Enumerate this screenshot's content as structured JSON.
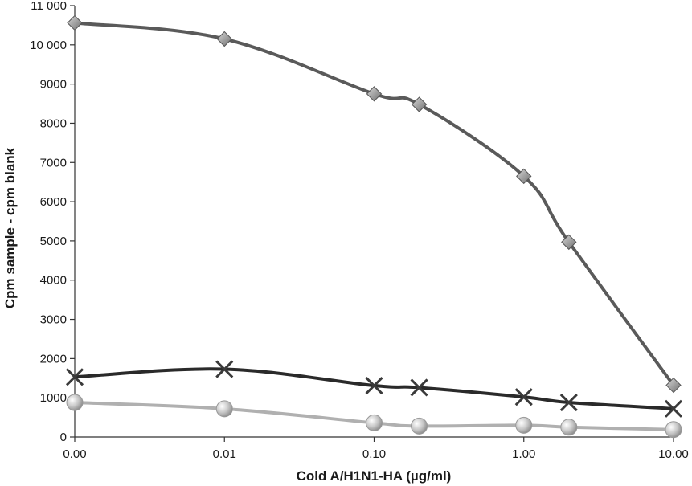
{
  "chart_data": {
    "type": "line",
    "title": "",
    "xlabel": "Cold A/H1N1-HA (µg/ml)",
    "ylabel": "Cpm sample - cpm blank",
    "x_scale": "log-like",
    "x_ticks": [
      {
        "value": 0.0,
        "label": "0.00"
      },
      {
        "value": 0.01,
        "label": "0.01"
      },
      {
        "value": 0.1,
        "label": "0.10"
      },
      {
        "value": 1.0,
        "label": "1.00"
      },
      {
        "value": 10.0,
        "label": "10.00"
      }
    ],
    "y_ticks": [
      {
        "value": 0,
        "label": "0"
      },
      {
        "value": 1000,
        "label": "1000"
      },
      {
        "value": 2000,
        "label": "2000"
      },
      {
        "value": 3000,
        "label": "3000"
      },
      {
        "value": 4000,
        "label": "4000"
      },
      {
        "value": 5000,
        "label": "5000"
      },
      {
        "value": 6000,
        "label": "6000"
      },
      {
        "value": 7000,
        "label": "7000"
      },
      {
        "value": 8000,
        "label": "8000"
      },
      {
        "value": 9000,
        "label": "9000"
      },
      {
        "value": 10000,
        "label": "10 000"
      },
      {
        "value": 11000,
        "label": "11 000"
      }
    ],
    "ylim": [
      0,
      11000
    ],
    "grid": false,
    "legend": "none",
    "series": [
      {
        "marker": "diamond",
        "line_color": "#5a5a5a",
        "marker_color": "#9a9a9a",
        "points": [
          {
            "x": 0.0,
            "y": 10560
          },
          {
            "x": 0.01,
            "y": 10150
          },
          {
            "x": 0.1,
            "y": 8750
          },
          {
            "x": 0.2,
            "y": 8480
          },
          {
            "x": 1.0,
            "y": 6650
          },
          {
            "x": 2.0,
            "y": 4970
          },
          {
            "x": 10.0,
            "y": 1320
          }
        ]
      },
      {
        "marker": "x",
        "line_color": "#2a2a2a",
        "marker_color": "#3a3a3a",
        "points": [
          {
            "x": 0.0,
            "y": 1530
          },
          {
            "x": 0.01,
            "y": 1730
          },
          {
            "x": 0.1,
            "y": 1310
          },
          {
            "x": 0.2,
            "y": 1260
          },
          {
            "x": 1.0,
            "y": 1020
          },
          {
            "x": 2.0,
            "y": 880
          },
          {
            "x": 10.0,
            "y": 720
          }
        ]
      },
      {
        "marker": "circle",
        "line_color": "#b0b0b0",
        "marker_color": "#c8c8c8",
        "points": [
          {
            "x": 0.0,
            "y": 880
          },
          {
            "x": 0.01,
            "y": 720
          },
          {
            "x": 0.1,
            "y": 360
          },
          {
            "x": 0.2,
            "y": 280
          },
          {
            "x": 1.0,
            "y": 300
          },
          {
            "x": 2.0,
            "y": 250
          },
          {
            "x": 10.0,
            "y": 190
          }
        ]
      }
    ]
  }
}
